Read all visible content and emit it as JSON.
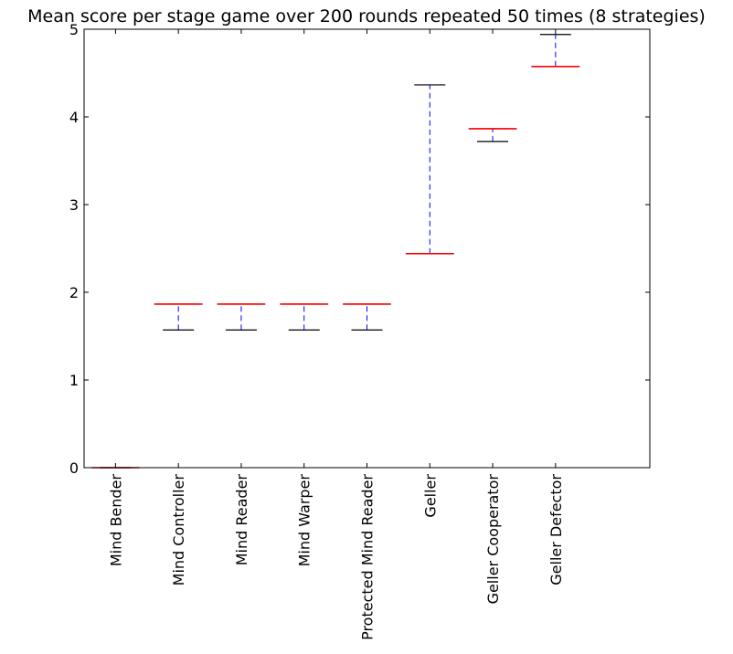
{
  "chart_data": {
    "type": "box",
    "title": "Mean score per stage game over 200 rounds repeated 50 times (8 strategies)",
    "xlabel": "",
    "ylabel": "",
    "ylim": [
      0,
      5
    ],
    "yticks": [
      0,
      1,
      2,
      3,
      4,
      5
    ],
    "grid": false,
    "categories": [
      "Mind Bender",
      "Mind Controller",
      "Mind Reader",
      "Mind Warper",
      "Protected Mind Reader",
      "Geller",
      "Geller Cooperator",
      "Geller Defector"
    ],
    "boxes": [
      {
        "whislo": 0.0,
        "q1": 0.0,
        "med": 0.0,
        "q3": 0.0,
        "whishi": 0.0
      },
      {
        "whislo": 1.57,
        "q1": 1.865,
        "med": 1.865,
        "q3": 1.865,
        "whishi": 1.865
      },
      {
        "whislo": 1.57,
        "q1": 1.865,
        "med": 1.865,
        "q3": 1.865,
        "whishi": 1.865
      },
      {
        "whislo": 1.57,
        "q1": 1.865,
        "med": 1.865,
        "q3": 1.865,
        "whishi": 1.865
      },
      {
        "whislo": 1.57,
        "q1": 1.865,
        "med": 1.865,
        "q3": 1.865,
        "whishi": 1.865
      },
      {
        "whislo": 2.44,
        "q1": 2.44,
        "med": 2.44,
        "q3": 2.44,
        "whishi": 4.365
      },
      {
        "whislo": 3.72,
        "q1": 3.865,
        "med": 3.865,
        "q3": 3.865,
        "whishi": 3.865
      },
      {
        "whislo": 4.575,
        "q1": 4.575,
        "med": 4.575,
        "q3": 4.575,
        "whishi": 4.94
      }
    ],
    "colors": {
      "box": "#0000ff",
      "whisker": "#0000ff",
      "cap": "#000000",
      "median": "#ff0000"
    }
  }
}
